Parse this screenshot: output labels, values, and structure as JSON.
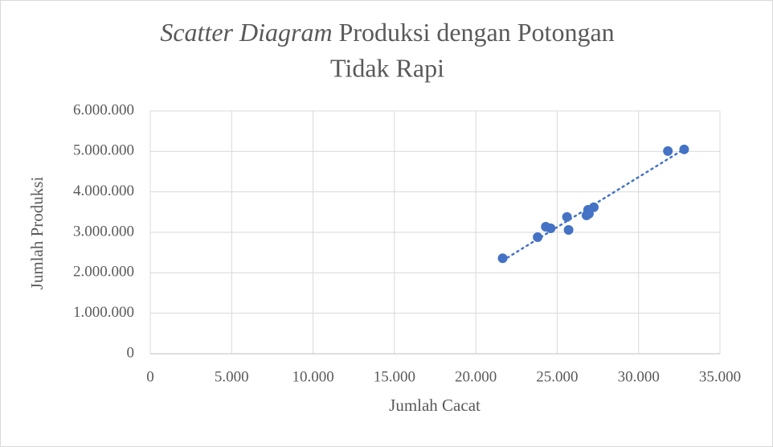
{
  "chart_data": {
    "type": "scatter",
    "title": [
      {
        "text": "Scatter Diagram",
        "italic": true
      },
      {
        "text": "Produksi dengan Potongan"
      },
      {
        "text": "Tidak Rapi"
      }
    ],
    "x_label": "Jumlah Cacat",
    "y_label": "Jumlah Produksi",
    "series": [
      {
        "color": "#4472c4",
        "x": [
          21650,
          23800,
          24300,
          24600,
          25600,
          25700,
          26800,
          26900,
          26950,
          27250,
          31800,
          32800
        ],
        "values": [
          2360000,
          2880000,
          3140000,
          3100000,
          3380000,
          3060000,
          3420000,
          3560000,
          3460000,
          3620000,
          5010000,
          5050000
        ]
      }
    ],
    "trendline": true,
    "xlim": [
      0,
      35000
    ],
    "xticks": [
      0,
      {
        "value": 5000,
        "label": "5.000"
      },
      {
        "value": 10000,
        "label": "10.000"
      },
      {
        "value": 15000,
        "label": "15.000"
      },
      {
        "value": 20000,
        "label": "20.000"
      },
      {
        "value": 25000,
        "label": "25.000"
      },
      {
        "value": 30000,
        "label": "30.000"
      },
      {
        "value": 35000,
        "label": "35.000"
      }
    ],
    "ylim": [
      0,
      6000000
    ],
    "yticks": [
      0,
      {
        "value": 1000000,
        "label": "1.000.000"
      },
      {
        "value": 2000000,
        "label": "2.000.000"
      },
      {
        "value": 3000000,
        "label": "3.000.000"
      },
      {
        "value": 4000000,
        "label": "4.000.000"
      },
      {
        "value": 5000000,
        "label": "5.000.000"
      },
      {
        "value": 6000000,
        "label": "6.000.000"
      }
    ],
    "grid": true
  }
}
